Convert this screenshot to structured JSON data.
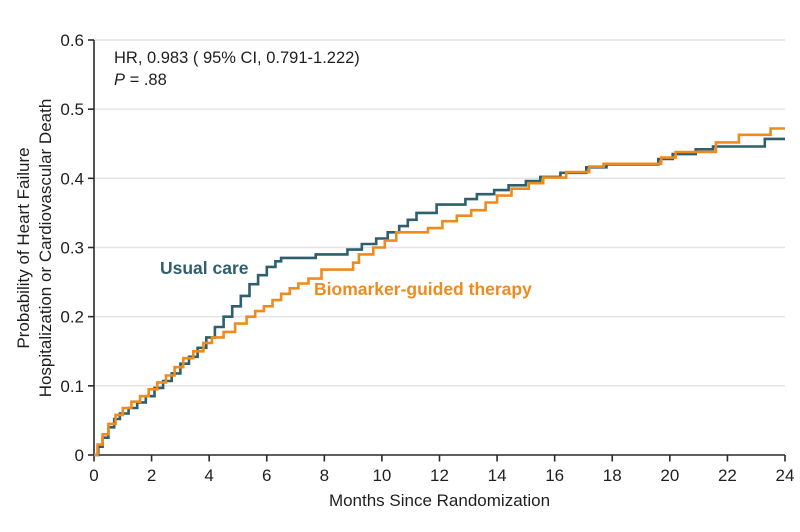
{
  "chart_data": {
    "type": "line",
    "subtype": "kaplan-meier-step",
    "xlabel": "Months Since Randomization",
    "ylabel_line1": "Probability of Heart Failure",
    "ylabel_line2": "Hospitalization or Cardiovascular Death",
    "xlim": [
      0,
      24
    ],
    "ylim": [
      0,
      0.6
    ],
    "x_ticks": [
      0,
      2,
      4,
      6,
      8,
      10,
      12,
      14,
      16,
      18,
      20,
      22,
      24
    ],
    "y_ticks": [
      0,
      0.1,
      0.2,
      0.3,
      0.4,
      0.5,
      0.6
    ],
    "y_tick_labels": [
      "0",
      "0.1",
      "0.2",
      "0.3",
      "0.4",
      "0.5",
      "0.6"
    ],
    "grid": "horizontal",
    "gridline_color": "#e3e3e3",
    "axis_color": "#2a2a2a",
    "annotation": {
      "line1": "HR, 0.983 ( 95% CI, 0.791-1.222)",
      "p_symbol": "P",
      "p_rest": " = .88"
    },
    "series": [
      {
        "name": "Usual care",
        "color": "#2d5f6d",
        "points": [
          [
            0,
            0
          ],
          [
            0.15,
            0.012
          ],
          [
            0.3,
            0.025
          ],
          [
            0.5,
            0.04
          ],
          [
            0.7,
            0.052
          ],
          [
            0.9,
            0.06
          ],
          [
            1.2,
            0.068
          ],
          [
            1.5,
            0.076
          ],
          [
            1.8,
            0.085
          ],
          [
            2.1,
            0.097
          ],
          [
            2.4,
            0.107
          ],
          [
            2.7,
            0.118
          ],
          [
            3.0,
            0.132
          ],
          [
            3.3,
            0.142
          ],
          [
            3.6,
            0.155
          ],
          [
            3.9,
            0.17
          ],
          [
            4.2,
            0.185
          ],
          [
            4.5,
            0.2
          ],
          [
            4.8,
            0.215
          ],
          [
            5.1,
            0.23
          ],
          [
            5.4,
            0.247
          ],
          [
            5.7,
            0.26
          ],
          [
            6.0,
            0.272
          ],
          [
            6.3,
            0.28
          ],
          [
            6.5,
            0.285
          ],
          [
            7.7,
            0.29
          ],
          [
            8.8,
            0.297
          ],
          [
            9.3,
            0.305
          ],
          [
            9.8,
            0.313
          ],
          [
            10.2,
            0.322
          ],
          [
            10.6,
            0.331
          ],
          [
            10.9,
            0.34
          ],
          [
            11.2,
            0.35
          ],
          [
            11.9,
            0.362
          ],
          [
            12.9,
            0.37
          ],
          [
            13.3,
            0.377
          ],
          [
            13.9,
            0.383
          ],
          [
            14.4,
            0.39
          ],
          [
            15.0,
            0.396
          ],
          [
            15.5,
            0.402
          ],
          [
            16.2,
            0.408
          ],
          [
            17.1,
            0.416
          ],
          [
            17.8,
            0.42
          ],
          [
            19.6,
            0.428
          ],
          [
            20.1,
            0.435
          ],
          [
            20.9,
            0.442
          ],
          [
            21.5,
            0.446
          ],
          [
            23.3,
            0.457
          ],
          [
            24,
            0.457
          ]
        ]
      },
      {
        "name": "Biomarker-guided therapy",
        "color": "#ee8b1e",
        "points": [
          [
            0,
            0
          ],
          [
            0.12,
            0.015
          ],
          [
            0.3,
            0.03
          ],
          [
            0.5,
            0.045
          ],
          [
            0.75,
            0.058
          ],
          [
            1.0,
            0.068
          ],
          [
            1.3,
            0.077
          ],
          [
            1.6,
            0.085
          ],
          [
            1.9,
            0.095
          ],
          [
            2.2,
            0.105
          ],
          [
            2.5,
            0.115
          ],
          [
            2.8,
            0.127
          ],
          [
            3.1,
            0.14
          ],
          [
            3.45,
            0.15
          ],
          [
            3.8,
            0.162
          ],
          [
            4.1,
            0.17
          ],
          [
            4.5,
            0.178
          ],
          [
            4.9,
            0.19
          ],
          [
            5.3,
            0.2
          ],
          [
            5.6,
            0.208
          ],
          [
            5.9,
            0.215
          ],
          [
            6.2,
            0.224
          ],
          [
            6.5,
            0.233
          ],
          [
            6.8,
            0.241
          ],
          [
            7.1,
            0.248
          ],
          [
            7.45,
            0.255
          ],
          [
            7.9,
            0.268
          ],
          [
            9.0,
            0.278
          ],
          [
            9.2,
            0.29
          ],
          [
            9.7,
            0.3
          ],
          [
            10.1,
            0.31
          ],
          [
            10.5,
            0.322
          ],
          [
            11.6,
            0.328
          ],
          [
            12.1,
            0.338
          ],
          [
            12.6,
            0.346
          ],
          [
            13.1,
            0.354
          ],
          [
            13.6,
            0.365
          ],
          [
            14.0,
            0.375
          ],
          [
            14.5,
            0.385
          ],
          [
            15.1,
            0.393
          ],
          [
            15.6,
            0.401
          ],
          [
            16.4,
            0.409
          ],
          [
            17.2,
            0.417
          ],
          [
            17.7,
            0.421
          ],
          [
            19.7,
            0.43
          ],
          [
            20.2,
            0.438
          ],
          [
            21.6,
            0.452
          ],
          [
            22.4,
            0.463
          ],
          [
            23.5,
            0.472
          ],
          [
            24,
            0.472
          ]
        ]
      }
    ]
  }
}
